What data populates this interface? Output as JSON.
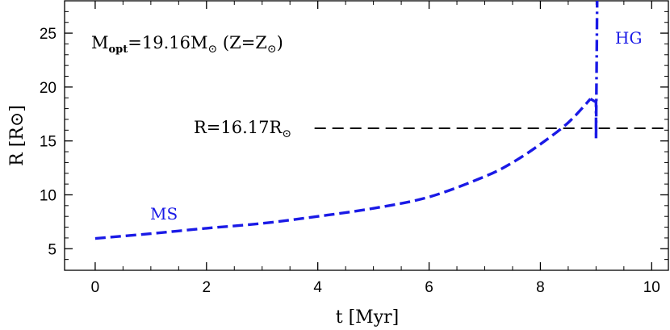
{
  "chart_data": {
    "type": "line",
    "xlabel": "t  [Myr]",
    "ylabel": "R  [R⊙]",
    "xlim": [
      -0.55,
      10.3
    ],
    "ylim": [
      3,
      28
    ],
    "x_ticks": [
      0,
      2,
      4,
      6,
      8,
      10
    ],
    "y_ticks": [
      5,
      10,
      15,
      20,
      25
    ],
    "grid": false,
    "series": [
      {
        "name": "MS",
        "style": "dashed",
        "color": "#1a1ae6",
        "x": [
          0,
          1,
          2,
          3,
          4,
          5,
          6,
          7,
          7.5,
          8,
          8.5,
          8.9
        ],
        "y": [
          5.95,
          6.4,
          6.9,
          7.35,
          8.0,
          8.75,
          9.8,
          11.7,
          13.0,
          14.7,
          16.7,
          18.9
        ]
      },
      {
        "name": "HG",
        "style": "dashdot",
        "color": "#1a1ae6",
        "x": [
          8.9,
          9.0,
          9.0,
          9.0,
          9.02
        ],
        "y": [
          18.9,
          18.6,
          16.0,
          15.2,
          28
        ]
      }
    ],
    "reference_line": {
      "style": "dashed",
      "color": "#000000",
      "y": 16.17,
      "x_start": 4.0,
      "x_end": 10.3
    },
    "annotations": {
      "mass": {
        "prefix": "M",
        "sub": "opt",
        "mid": "=19.16M",
        "sun": "⊙",
        "suffix_open": " (Z=Z",
        "suffix_close": ")"
      },
      "radius": {
        "prefix": "R=16.17R",
        "sun": "⊙"
      },
      "ms_label": "MS",
      "hg_label": "HG"
    }
  }
}
